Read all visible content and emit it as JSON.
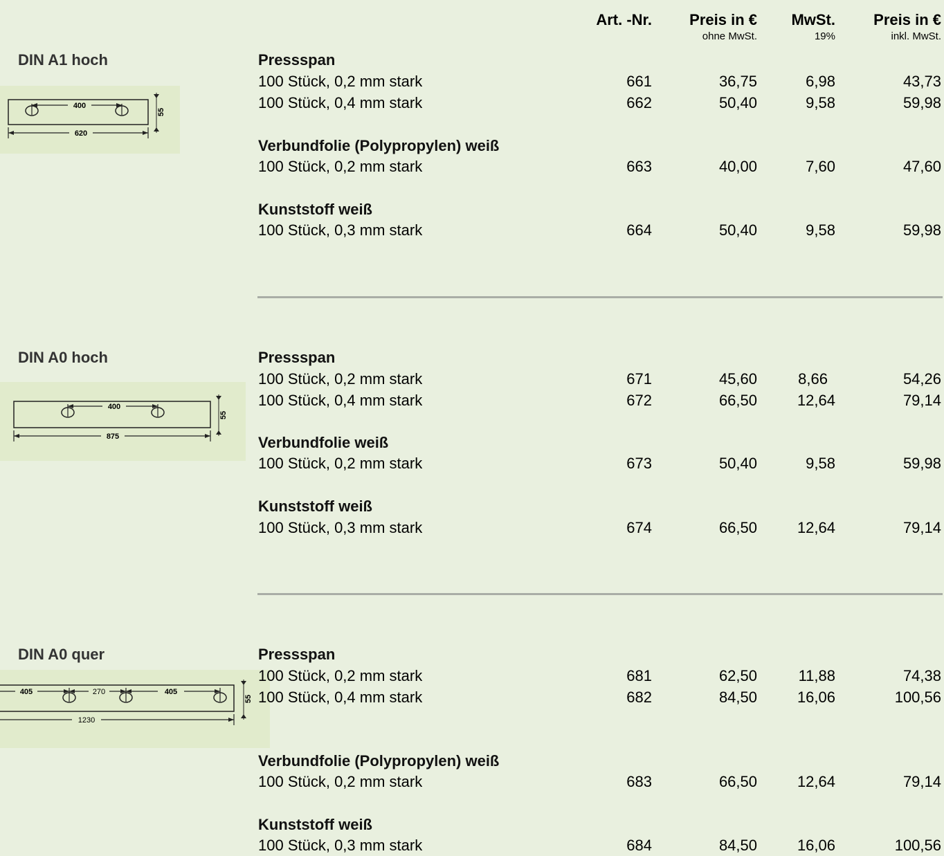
{
  "header": {
    "art_nr": "Art. -Nr.",
    "price_net": "Preis in €",
    "price_net_sub": "ohne MwSt.",
    "vat": "MwSt.",
    "vat_sub": "19%",
    "price_gross": "Preis in €",
    "price_gross_sub": "inkl. MwSt."
  },
  "sections": [
    {
      "title": "DIN A1 hoch",
      "drawing": {
        "span": "400",
        "width": "620",
        "height": "55"
      },
      "groups": [
        {
          "name": "Pressspan",
          "rows": [
            {
              "desc": "100 Stück, 0,2 mm stark",
              "art": "661",
              "net": "36,75",
              "vat": "6,98",
              "gross": "43,73"
            },
            {
              "desc": "100 Stück, 0,4 mm stark",
              "art": "662",
              "net": "50,40",
              "vat": "9,58",
              "gross": "59,98"
            }
          ]
        },
        {
          "name": "Verbundfolie (Polypropylen) weiß",
          "rows": [
            {
              "desc": "100 Stück, 0,2 mm stark",
              "art": "663",
              "net": "40,00",
              "vat": "7,60",
              "gross": "47,60"
            }
          ]
        },
        {
          "name": "Kunststoff weiß",
          "rows": [
            {
              "desc": "100 Stück, 0,3 mm stark",
              "art": "664",
              "net": "50,40",
              "vat": "9,58",
              "gross": "59,98"
            }
          ]
        }
      ]
    },
    {
      "title": "DIN A0 hoch",
      "drawing": {
        "span": "400",
        "width": "875",
        "height": "55"
      },
      "groups": [
        {
          "name": "Pressspan",
          "rows": [
            {
              "desc": "100 Stück, 0,2 mm stark",
              "art": "671",
              "net": "45,60",
              "vat": "8,66",
              "gross": "54,26"
            },
            {
              "desc": "100 Stück, 0,4 mm stark",
              "art": "672",
              "net": "66,50",
              "vat": "12,64",
              "gross": "79,14"
            }
          ]
        },
        {
          "name": "Verbundfolie weiß",
          "rows": [
            {
              "desc": "100 Stück, 0,2 mm stark",
              "art": "673",
              "net": "50,40",
              "vat": "9,58",
              "gross": "59,98"
            }
          ]
        },
        {
          "name": "Kunststoff weiß",
          "rows": [
            {
              "desc": "100 Stück, 0,3 mm stark",
              "art": "674",
              "net": "66,50",
              "vat": "12,64",
              "gross": "79,14"
            }
          ]
        }
      ]
    },
    {
      "title": "DIN A0 quer",
      "drawing": {
        "span_a": "405",
        "span_b": "270",
        "span_c": "405",
        "width": "1230",
        "height": "55"
      },
      "groups": [
        {
          "name": "Pressspan",
          "rows": [
            {
              "desc": "100 Stück, 0,2 mm stark",
              "art": "681",
              "net": "62,50",
              "vat": "11,88",
              "gross": "74,38"
            },
            {
              "desc": "100 Stück, 0,4 mm stark",
              "art": "682",
              "net": "84,50",
              "vat": "16,06",
              "gross": "100,56"
            }
          ]
        },
        {
          "name": "Verbundfolie (Polypropylen) weiß",
          "rows": [
            {
              "desc": "100 Stück, 0,2 mm stark",
              "art": "683",
              "net": "66,50",
              "vat": "12,64",
              "gross": "79,14"
            }
          ]
        },
        {
          "name": "Kunststoff weiß",
          "rows": [
            {
              "desc": "100 Stück, 0,3 mm stark",
              "art": "684",
              "net": "84,50",
              "vat": "16,06",
              "gross": "100,56"
            }
          ]
        }
      ]
    }
  ]
}
